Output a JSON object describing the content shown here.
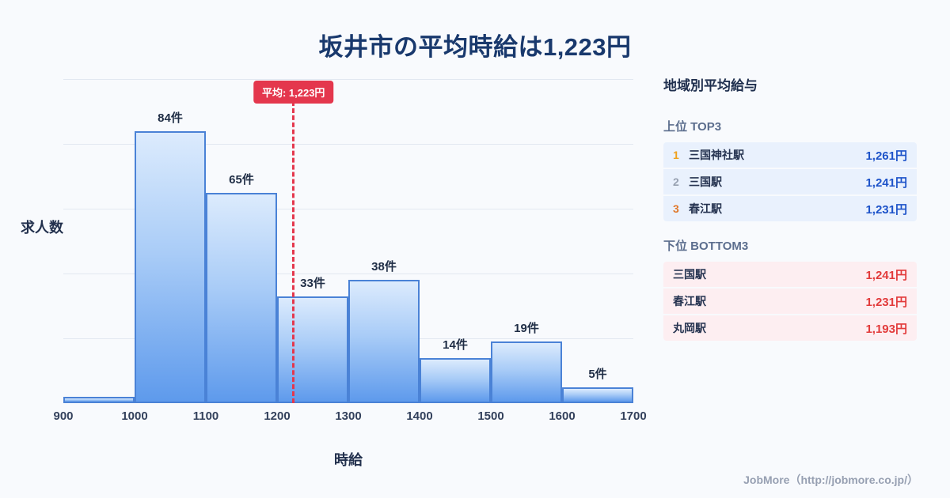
{
  "title": "坂井市の平均時給は1,223円",
  "chart_data": {
    "type": "bar",
    "bin_edges": [
      900,
      1000,
      1100,
      1200,
      1300,
      1400,
      1500,
      1600,
      1700
    ],
    "values": [
      2,
      84,
      65,
      33,
      38,
      14,
      19,
      5
    ],
    "bar_labels": [
      "",
      "84件",
      "65件",
      "33件",
      "38件",
      "14件",
      "19件",
      "5件"
    ],
    "xlabel": "時給",
    "ylabel": "求人数",
    "ylim": [
      0,
      100
    ],
    "ytick_step": 20,
    "grid": true,
    "legend": "none",
    "average": {
      "value": 1223,
      "label": "平均: 1,223円"
    }
  },
  "panel": {
    "title": "地域別平均給与",
    "top": {
      "heading": "上位 TOP3",
      "rows": [
        {
          "rank": "1",
          "name": "三国神社駅",
          "value": "1,261円"
        },
        {
          "rank": "2",
          "name": "三国駅",
          "value": "1,241円"
        },
        {
          "rank": "3",
          "name": "春江駅",
          "value": "1,231円"
        }
      ]
    },
    "bottom": {
      "heading": "下位 BOTTOM3",
      "rows": [
        {
          "name": "三国駅",
          "value": "1,241円"
        },
        {
          "name": "春江駅",
          "value": "1,231円"
        },
        {
          "name": "丸岡駅",
          "value": "1,193円"
        }
      ]
    }
  },
  "footer": {
    "credit": "JobMore（http://jobmore.co.jp/）"
  },
  "colors": {
    "background": "#f8fafd",
    "title_text": "#19396d",
    "bar_fill_top": "#dcebfd",
    "bar_fill_bottom": "#5e9aec",
    "bar_border": "#4a82d6",
    "average_accent": "#e4374d",
    "top_row_bg": "#e9f1fd",
    "top_value_text": "#1d53c9",
    "bottom_row_bg": "#fdeef1",
    "bottom_value_text": "#e23b3b",
    "rank1": "#f0a11c",
    "rank2": "#97a1b1",
    "rank3": "#e0782a"
  }
}
